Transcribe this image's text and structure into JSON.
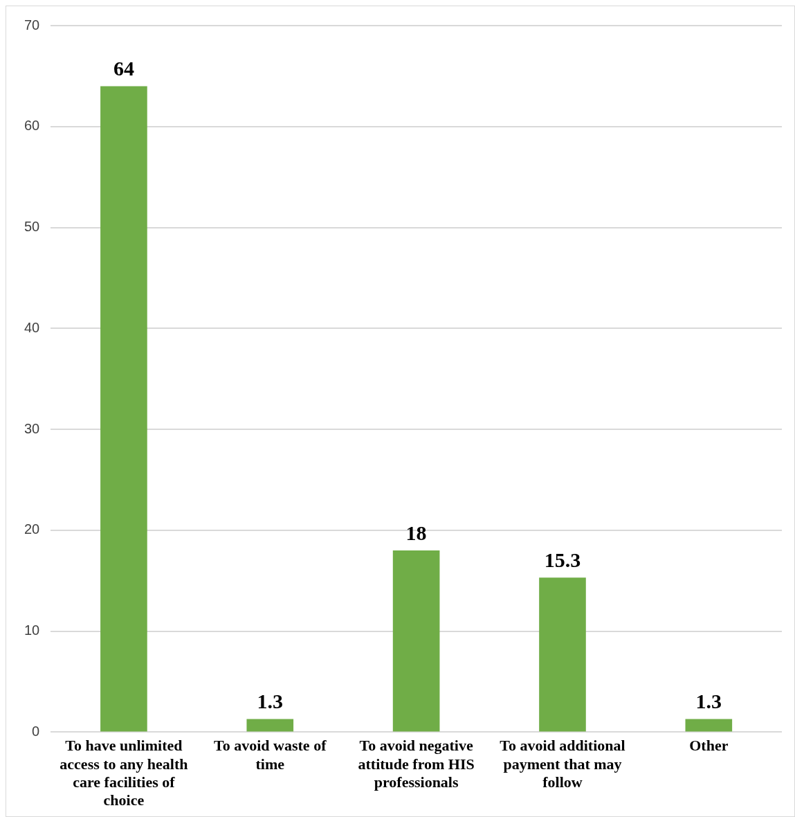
{
  "chart_data": {
    "type": "bar",
    "categories": [
      "To have unlimited access to any health care facilities of choice",
      "To avoid waste of time",
      "To avoid negative attitude from HIS professionals",
      "To avoid additional payment that may follow",
      "Other"
    ],
    "values": [
      64,
      1.3,
      18,
      15.3,
      1.3
    ],
    "color": "#70ad47",
    "ylim": [
      0,
      70
    ],
    "yticks": [
      0,
      10,
      20,
      30,
      40,
      50,
      60,
      70
    ],
    "grid": "y",
    "data_labels": true
  }
}
